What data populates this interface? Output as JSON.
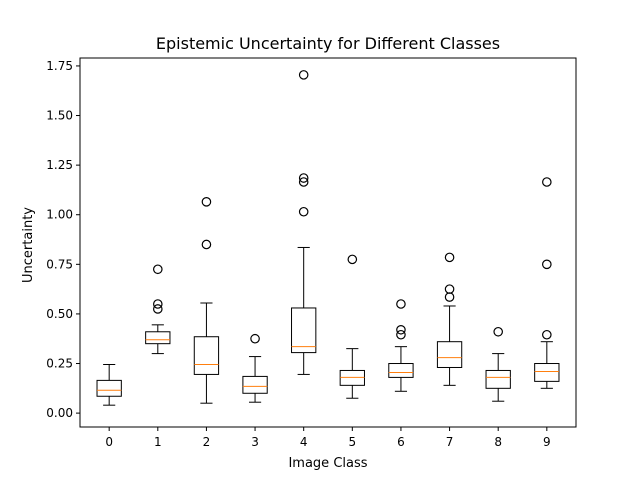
{
  "chart_data": {
    "type": "boxplot",
    "title": "Epistemic Uncertainty for Different Classes",
    "xlabel": "Image Class",
    "ylabel": "Uncertainty",
    "categories": [
      "0",
      "1",
      "2",
      "3",
      "4",
      "5",
      "6",
      "7",
      "8",
      "9"
    ],
    "ylim": [
      -0.07,
      1.79
    ],
    "yticks": [
      0.0,
      0.25,
      0.5,
      0.75,
      1.0,
      1.25,
      1.5,
      1.75
    ],
    "ytick_labels": [
      "0.00",
      "0.25",
      "0.50",
      "0.75",
      "1.00",
      "1.25",
      "1.50",
      "1.75"
    ],
    "grid": false,
    "boxes": [
      {
        "category": "0",
        "whisker_low": 0.04,
        "q1": 0.085,
        "median": 0.115,
        "q3": 0.165,
        "whisker_high": 0.245,
        "outliers": []
      },
      {
        "category": "1",
        "whisker_low": 0.3,
        "q1": 0.35,
        "median": 0.37,
        "q3": 0.41,
        "whisker_high": 0.445,
        "outliers": [
          0.525,
          0.55,
          0.725
        ]
      },
      {
        "category": "2",
        "whisker_low": 0.05,
        "q1": 0.195,
        "median": 0.245,
        "q3": 0.385,
        "whisker_high": 0.555,
        "outliers": [
          0.85,
          1.065
        ]
      },
      {
        "category": "3",
        "whisker_low": 0.055,
        "q1": 0.1,
        "median": 0.135,
        "q3": 0.185,
        "whisker_high": 0.285,
        "outliers": [
          0.375
        ]
      },
      {
        "category": "4",
        "whisker_low": 0.195,
        "q1": 0.305,
        "median": 0.335,
        "q3": 0.53,
        "whisker_high": 0.835,
        "outliers": [
          1.015,
          1.165,
          1.185,
          1.705
        ]
      },
      {
        "category": "5",
        "whisker_low": 0.075,
        "q1": 0.14,
        "median": 0.18,
        "q3": 0.215,
        "whisker_high": 0.325,
        "outliers": [
          0.775
        ]
      },
      {
        "category": "6",
        "whisker_low": 0.11,
        "q1": 0.18,
        "median": 0.205,
        "q3": 0.25,
        "whisker_high": 0.335,
        "outliers": [
          0.395,
          0.42,
          0.55
        ]
      },
      {
        "category": "7",
        "whisker_low": 0.14,
        "q1": 0.23,
        "median": 0.28,
        "q3": 0.36,
        "whisker_high": 0.54,
        "outliers": [
          0.585,
          0.625,
          0.785
        ]
      },
      {
        "category": "8",
        "whisker_low": 0.06,
        "q1": 0.125,
        "median": 0.18,
        "q3": 0.215,
        "whisker_high": 0.3,
        "outliers": [
          0.41
        ]
      },
      {
        "category": "9",
        "whisker_low": 0.125,
        "q1": 0.16,
        "median": 0.21,
        "q3": 0.25,
        "whisker_high": 0.36,
        "outliers": [
          0.395,
          0.75,
          1.165
        ]
      }
    ],
    "colors": {
      "box": "#000000",
      "median": "#ff7f0e",
      "outlier": "#000000",
      "background": "#ffffff"
    }
  }
}
